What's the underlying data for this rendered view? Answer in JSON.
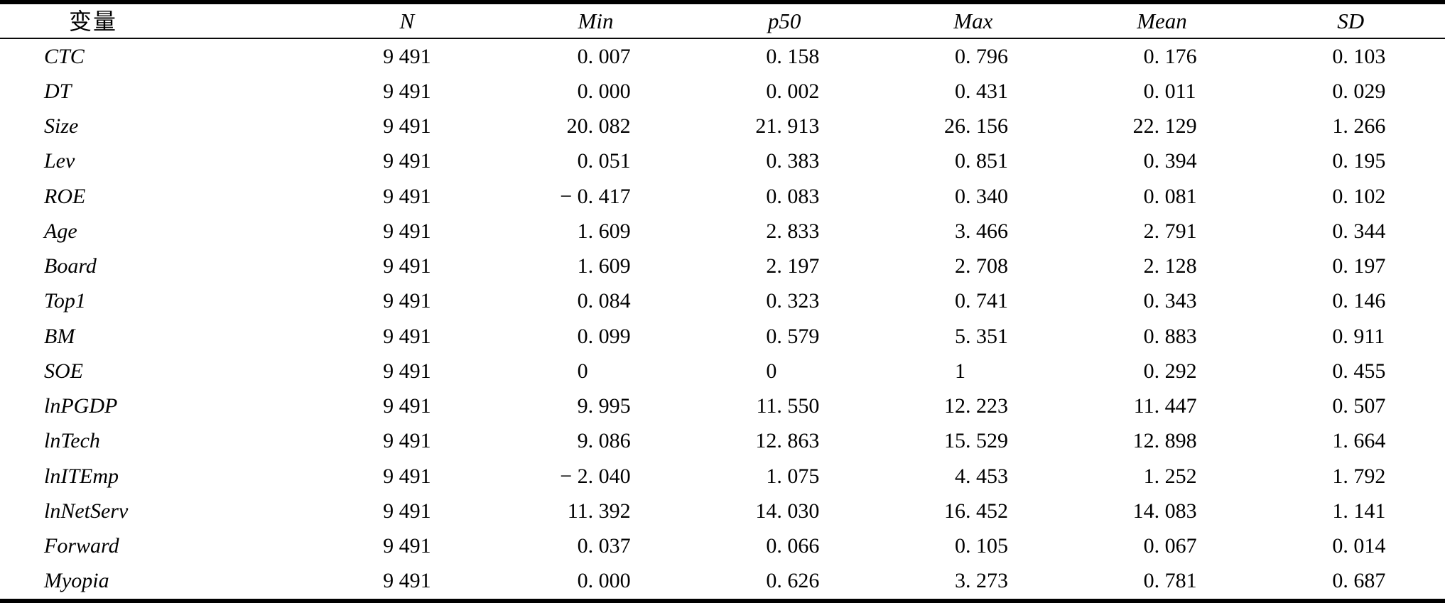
{
  "table": {
    "columns": [
      {
        "key": "variable",
        "label": "变量",
        "align": "label"
      },
      {
        "key": "n",
        "label": "N",
        "align": "center"
      },
      {
        "key": "min",
        "label": "Min",
        "align": "decimal"
      },
      {
        "key": "p50",
        "label": "p50",
        "align": "decimal"
      },
      {
        "key": "max",
        "label": "Max",
        "align": "decimal"
      },
      {
        "key": "mean",
        "label": "Mean",
        "align": "decimal"
      },
      {
        "key": "sd",
        "label": "SD",
        "align": "decimal"
      }
    ],
    "rows": [
      [
        "CTC",
        "9 491",
        "0. 007",
        "0. 158",
        "0. 796",
        "0. 176",
        "0. 103"
      ],
      [
        "DT",
        "9 491",
        "0. 000",
        "0. 002",
        "0. 431",
        "0. 011",
        "0. 029"
      ],
      [
        "Size",
        "9 491",
        "20. 082",
        "21. 913",
        "26. 156",
        "22. 129",
        "1. 266"
      ],
      [
        "Lev",
        "9 491",
        "0. 051",
        "0. 383",
        "0. 851",
        "0. 394",
        "0. 195"
      ],
      [
        "ROE",
        "9 491",
        "− 0. 417",
        "0. 083",
        "0. 340",
        "0. 081",
        "0. 102"
      ],
      [
        "Age",
        "9 491",
        "1. 609",
        "2. 833",
        "3. 466",
        "2. 791",
        "0. 344"
      ],
      [
        "Board",
        "9 491",
        "1. 609",
        "2. 197",
        "2. 708",
        "2. 128",
        "0. 197"
      ],
      [
        "Top1",
        "9 491",
        "0. 084",
        "0. 323",
        "0. 741",
        "0. 343",
        "0. 146"
      ],
      [
        "BM",
        "9 491",
        "0. 099",
        "0. 579",
        "5. 351",
        "0. 883",
        "0. 911"
      ],
      [
        "SOE",
        "9 491",
        "0",
        "0",
        "1",
        "0. 292",
        "0. 455"
      ],
      [
        "lnPGDP",
        "9 491",
        "9. 995",
        "11. 550",
        "12. 223",
        "11. 447",
        "0. 507"
      ],
      [
        "lnTech",
        "9 491",
        "9. 086",
        "12. 863",
        "15. 529",
        "12. 898",
        "1. 664"
      ],
      [
        "lnITEmp",
        "9 491",
        "− 2. 040",
        "1. 075",
        "4. 453",
        "1. 252",
        "1. 792"
      ],
      [
        "lnNetServ",
        "9 491",
        "11. 392",
        "14. 030",
        "16. 452",
        "14. 083",
        "1. 141"
      ],
      [
        "Forward",
        "9 491",
        "0. 037",
        "0. 066",
        "0. 105",
        "0. 067",
        "0. 014"
      ],
      [
        "Myopia",
        "9 491",
        "0. 000",
        "0. 626",
        "3. 273",
        "0. 781",
        "0. 687"
      ]
    ]
  }
}
